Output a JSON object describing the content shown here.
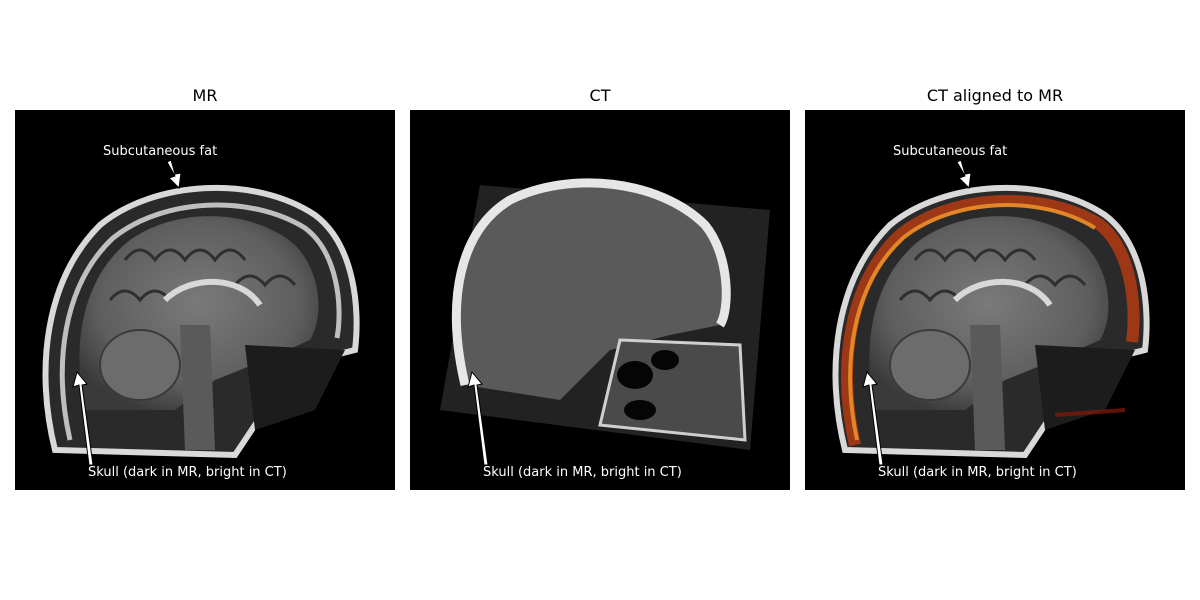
{
  "panels": [
    {
      "title": "MR",
      "annotations": {
        "subcutaneous": "Subcutaneous fat",
        "skull": "Skull (dark in MR, bright in CT)"
      }
    },
    {
      "title": "CT",
      "annotations": {
        "skull": "Skull (dark in MR, bright in CT)"
      }
    },
    {
      "title": "CT aligned to MR",
      "annotations": {
        "subcutaneous": "Subcutaneous fat",
        "skull": "Skull (dark in MR, bright in CT)"
      }
    }
  ]
}
